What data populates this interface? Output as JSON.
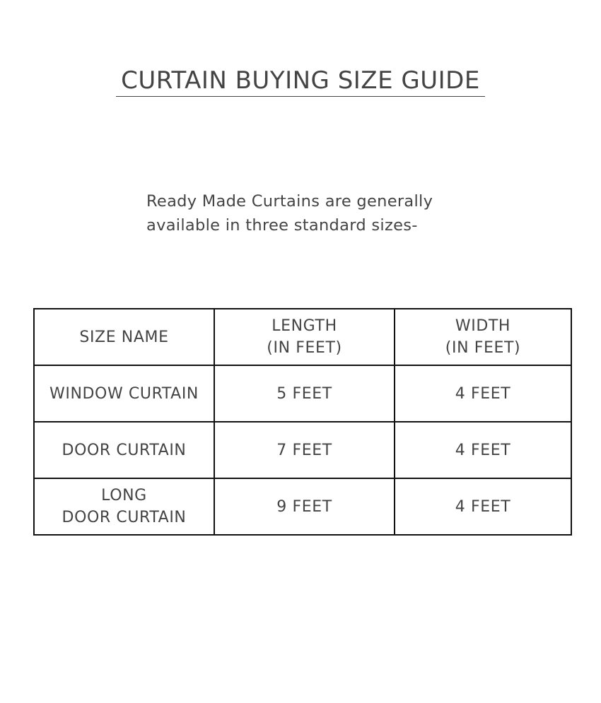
{
  "title": "CURTAIN BUYING SIZE GUIDE",
  "intro": {
    "line1": "Ready Made Curtains are generally",
    "line2": "available in three standard sizes-"
  },
  "table": {
    "headers": [
      {
        "line1": "SIZE NAME",
        "line2": ""
      },
      {
        "line1": "LENGTH",
        "line2": "(IN FEET)"
      },
      {
        "line1": "WIDTH",
        "line2": "(IN FEET)"
      }
    ],
    "rows": [
      {
        "name_line1": "WINDOW CURTAIN",
        "name_line2": "",
        "length": "5 FEET",
        "width": "4 FEET"
      },
      {
        "name_line1": "DOOR CURTAIN",
        "name_line2": "",
        "length": "7 FEET",
        "width": "4 FEET"
      },
      {
        "name_line1": "LONG",
        "name_line2": "DOOR CURTAIN",
        "length": "9 FEET",
        "width": "4 FEET"
      }
    ]
  }
}
